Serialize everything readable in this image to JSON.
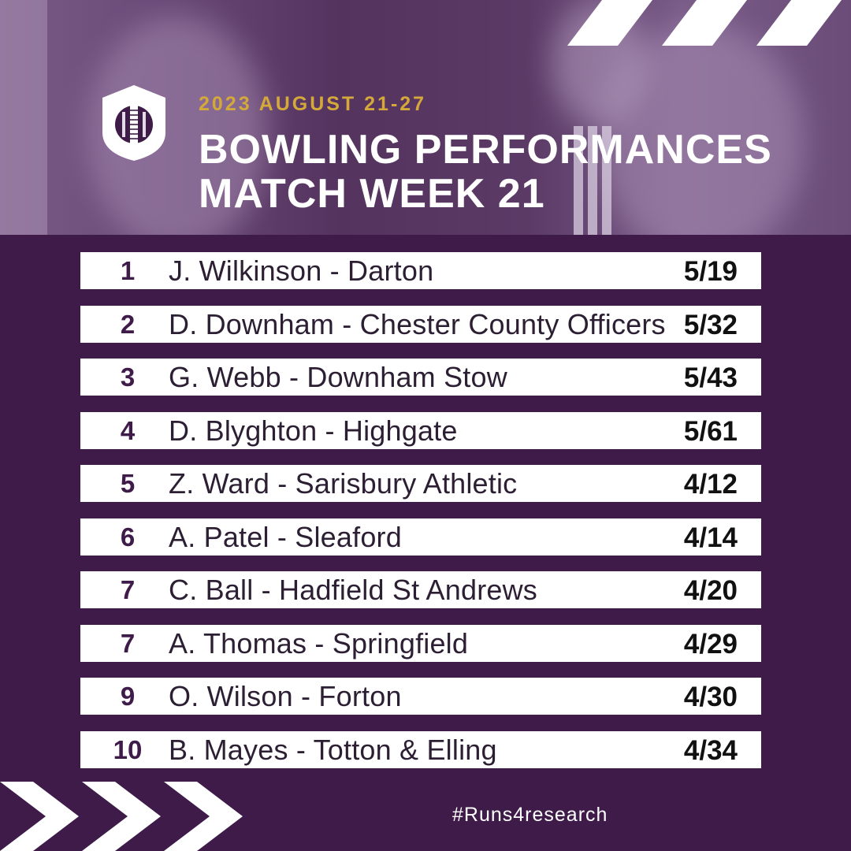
{
  "header": {
    "date": "2023 AUGUST 21-27",
    "title_line1": "BOWLING PERFORMANCES",
    "title_line2": "MATCH WEEK 21"
  },
  "rankings": [
    {
      "rank": "1",
      "name": "J. Wilkinson - Darton",
      "figures": "5/19"
    },
    {
      "rank": "2",
      "name": "D. Downham - Chester County Officers",
      "figures": "5/32"
    },
    {
      "rank": "3",
      "name": "G. Webb - Downham Stow",
      "figures": "5/43"
    },
    {
      "rank": "4",
      "name": "D. Blyghton - Highgate",
      "figures": "5/61"
    },
    {
      "rank": "5",
      "name": "Z. Ward - Sarisbury Athletic",
      "figures": "4/12"
    },
    {
      "rank": "6",
      "name": "A. Patel - Sleaford",
      "figures": "4/14"
    },
    {
      "rank": "7",
      "name": "C. Ball - Hadfield St Andrews",
      "figures": "4/20"
    },
    {
      "rank": "7",
      "name": "A. Thomas - Springfield",
      "figures": "4/29"
    },
    {
      "rank": "9",
      "name": "O. Wilson - Forton",
      "figures": "4/30"
    },
    {
      "rank": "10",
      "name": "B. Mayes - Totton & Elling",
      "figures": "4/34"
    }
  ],
  "footer": {
    "hashtag": "#Runs4research"
  },
  "colors": {
    "background": "#3f1b4a",
    "accent": "#d4a93a",
    "row": "#ffffff"
  },
  "icons": {
    "logo": "cricket-ball-shield-icon",
    "stripes": "diagonal-stripes",
    "chevrons": "chevron-right-icon"
  }
}
